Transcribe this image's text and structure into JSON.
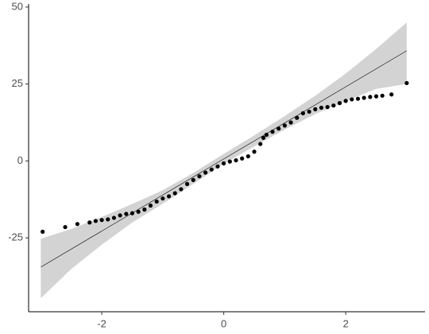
{
  "chart_data": {
    "type": "scatter",
    "x": [
      -2.97,
      -2.6,
      -2.4,
      -2.2,
      -2.1,
      -2.0,
      -1.9,
      -1.8,
      -1.7,
      -1.6,
      -1.5,
      -1.4,
      -1.3,
      -1.2,
      -1.1,
      -1.0,
      -0.9,
      -0.8,
      -0.7,
      -0.6,
      -0.5,
      -0.4,
      -0.3,
      -0.2,
      -0.1,
      0,
      0.1,
      0.2,
      0.3,
      0.4,
      0.5,
      0.6,
      0.65,
      0.7,
      0.8,
      0.9,
      1.0,
      1.1,
      1.2,
      1.3,
      1.4,
      1.5,
      1.6,
      1.7,
      1.8,
      1.9,
      2.0,
      2.1,
      2.2,
      2.3,
      2.4,
      2.5,
      2.6,
      2.75,
      3.0
    ],
    "values": [
      -23,
      -21.5,
      -20.5,
      -20,
      -19.5,
      -19.2,
      -19,
      -18.5,
      -17.7,
      -17.2,
      -17,
      -16.5,
      -15.8,
      -14.5,
      -13.2,
      -12.2,
      -11.5,
      -10.5,
      -9.2,
      -7.5,
      -6.2,
      -5,
      -3.8,
      -2.8,
      -1.8,
      -0.8,
      -0.2,
      0.2,
      0.8,
      1.5,
      3,
      5.5,
      7.5,
      8.5,
      9.5,
      10.5,
      11.5,
      12.5,
      14,
      15.5,
      16,
      16.8,
      17.3,
      17.5,
      18,
      18.8,
      19.5,
      20,
      20.2,
      20.5,
      20.8,
      21,
      21.2,
      21.6,
      25.3
    ],
    "color": "#000000",
    "line": {
      "x": [
        -3,
        3
      ],
      "y": [
        -34.5,
        35.8
      ],
      "color": "#000000"
    },
    "band": {
      "x": [
        -3,
        -2.5,
        -2,
        -1.5,
        -1,
        -0.5,
        0,
        0.5,
        1,
        1.5,
        2,
        2.5,
        3
      ],
      "upper": [
        -25.3,
        -22.1,
        -18.2,
        -14.0,
        -9.5,
        -3.9,
        2.3,
        8.3,
        14.6,
        21.2,
        28.4,
        36.4,
        45
      ],
      "lower": [
        -44.6,
        -35.1,
        -27.2,
        -20.0,
        -13.9,
        -7.5,
        -0.9,
        4.7,
        10.2,
        15.2,
        19.4,
        23.4,
        25
      ],
      "color": "#d3d3d3"
    },
    "xlim": [
      -3.2,
      3.3
    ],
    "ylim": [
      -49,
      51
    ],
    "xticks": [
      -2,
      0,
      2
    ],
    "yticks": [
      -25,
      0,
      25,
      50
    ]
  }
}
